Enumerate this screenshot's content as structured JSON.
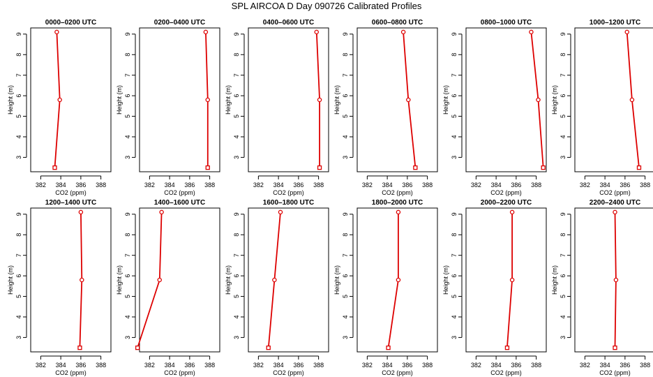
{
  "title": "SPL AIRCOA D  Day 090726  Calibrated Profiles",
  "colors": {
    "series": "#dd0000",
    "axis": "#000000"
  },
  "chart_data": [
    {
      "type": "line",
      "title": "0000–0200 UTC",
      "xlabel": "CO2 (ppm)",
      "ylabel": "Height (m)",
      "xlim": [
        381,
        389
      ],
      "ylim": [
        2.3,
        9.3
      ],
      "xticks": [
        382,
        384,
        386,
        388
      ],
      "yticks": [
        3,
        4,
        5,
        6,
        7,
        8,
        9
      ],
      "x": [
        383.4,
        383.9,
        383.6
      ],
      "y": [
        2.5,
        5.8,
        9.1
      ]
    },
    {
      "type": "line",
      "title": "0200–0400 UTC",
      "xlabel": "CO2 (ppm)",
      "ylabel": "Height (m)",
      "xlim": [
        381,
        389
      ],
      "ylim": [
        2.3,
        9.3
      ],
      "xticks": [
        382,
        384,
        386,
        388
      ],
      "yticks": [
        3,
        4,
        5,
        6,
        7,
        8,
        9
      ],
      "x": [
        387.8,
        387.8,
        387.6
      ],
      "y": [
        2.5,
        5.8,
        9.1
      ]
    },
    {
      "type": "line",
      "title": "0400–0600 UTC",
      "xlabel": "CO2 (ppm)",
      "ylabel": "Height (m)",
      "xlim": [
        381,
        389
      ],
      "ylim": [
        2.3,
        9.3
      ],
      "xticks": [
        382,
        384,
        386,
        388
      ],
      "yticks": [
        3,
        4,
        5,
        6,
        7,
        8,
        9
      ],
      "x": [
        388.1,
        388.1,
        387.8
      ],
      "y": [
        2.5,
        5.8,
        9.1
      ]
    },
    {
      "type": "line",
      "title": "0600–0800 UTC",
      "xlabel": "CO2 (ppm)",
      "ylabel": "Height (m)",
      "xlim": [
        381,
        389
      ],
      "ylim": [
        2.3,
        9.3
      ],
      "xticks": [
        382,
        384,
        386,
        388
      ],
      "yticks": [
        3,
        4,
        5,
        6,
        7,
        8,
        9
      ],
      "x": [
        386.8,
        386.1,
        385.6
      ],
      "y": [
        2.5,
        5.8,
        9.1
      ]
    },
    {
      "type": "line",
      "title": "0800–1000 UTC",
      "xlabel": "CO2 (ppm)",
      "ylabel": "Height (m)",
      "xlim": [
        381,
        389
      ],
      "ylim": [
        2.3,
        9.3
      ],
      "xticks": [
        382,
        384,
        386,
        388
      ],
      "yticks": [
        3,
        4,
        5,
        6,
        7,
        8,
        9
      ],
      "x": [
        388.7,
        388.2,
        387.5
      ],
      "y": [
        2.5,
        5.8,
        9.1
      ]
    },
    {
      "type": "line",
      "title": "1000–1200 UTC",
      "xlabel": "CO2 (ppm)",
      "ylabel": "Height (m)",
      "xlim": [
        381,
        389
      ],
      "ylim": [
        2.3,
        9.3
      ],
      "xticks": [
        382,
        384,
        386,
        388
      ],
      "yticks": [
        3,
        4,
        5,
        6,
        7,
        8,
        9
      ],
      "x": [
        387.4,
        386.7,
        386.2
      ],
      "y": [
        2.5,
        5.8,
        9.1
      ]
    },
    {
      "type": "line",
      "title": "1200–1400 UTC",
      "xlabel": "CO2 (ppm)",
      "ylabel": "Height (m)",
      "xlim": [
        381,
        389
      ],
      "ylim": [
        2.3,
        9.3
      ],
      "xticks": [
        382,
        384,
        386,
        388
      ],
      "yticks": [
        3,
        4,
        5,
        6,
        7,
        8,
        9
      ],
      "x": [
        385.9,
        386.1,
        386.0
      ],
      "y": [
        2.5,
        5.8,
        9.1
      ]
    },
    {
      "type": "line",
      "title": "1400–1600 UTC",
      "xlabel": "CO2 (ppm)",
      "ylabel": "Height (m)",
      "xlim": [
        381,
        389
      ],
      "ylim": [
        2.3,
        9.3
      ],
      "xticks": [
        382,
        384,
        386,
        388
      ],
      "yticks": [
        3,
        4,
        5,
        6,
        7,
        8,
        9
      ],
      "x": [
        380.8,
        383.0,
        383.2
      ],
      "y": [
        2.5,
        5.8,
        9.1
      ]
    },
    {
      "type": "line",
      "title": "1600–1800 UTC",
      "xlabel": "CO2 (ppm)",
      "ylabel": "Height (m)",
      "xlim": [
        381,
        389
      ],
      "ylim": [
        2.3,
        9.3
      ],
      "xticks": [
        382,
        384,
        386,
        388
      ],
      "yticks": [
        3,
        4,
        5,
        6,
        7,
        8,
        9
      ],
      "x": [
        383.0,
        383.6,
        384.2
      ],
      "y": [
        2.5,
        5.8,
        9.1
      ]
    },
    {
      "type": "line",
      "title": "1800–2000 UTC",
      "xlabel": "CO2 (ppm)",
      "ylabel": "Height (m)",
      "xlim": [
        381,
        389
      ],
      "ylim": [
        2.3,
        9.3
      ],
      "xticks": [
        382,
        384,
        386,
        388
      ],
      "yticks": [
        3,
        4,
        5,
        6,
        7,
        8,
        9
      ],
      "x": [
        384.1,
        385.1,
        385.1
      ],
      "y": [
        2.5,
        5.8,
        9.1
      ]
    },
    {
      "type": "line",
      "title": "2000–2200 UTC",
      "xlabel": "CO2 (ppm)",
      "ylabel": "Height (m)",
      "xlim": [
        381,
        389
      ],
      "ylim": [
        2.3,
        9.3
      ],
      "xticks": [
        382,
        384,
        386,
        388
      ],
      "yticks": [
        3,
        4,
        5,
        6,
        7,
        8,
        9
      ],
      "x": [
        385.1,
        385.6,
        385.6
      ],
      "y": [
        2.5,
        5.8,
        9.1
      ]
    },
    {
      "type": "line",
      "title": "2200–2400 UTC",
      "xlabel": "CO2 (ppm)",
      "ylabel": "Height (m)",
      "xlim": [
        381,
        389
      ],
      "ylim": [
        2.3,
        9.3
      ],
      "xticks": [
        382,
        384,
        386,
        388
      ],
      "yticks": [
        3,
        4,
        5,
        6,
        7,
        8,
        9
      ],
      "x": [
        385.0,
        385.1,
        385.0
      ],
      "y": [
        2.5,
        5.8,
        9.1
      ]
    }
  ]
}
